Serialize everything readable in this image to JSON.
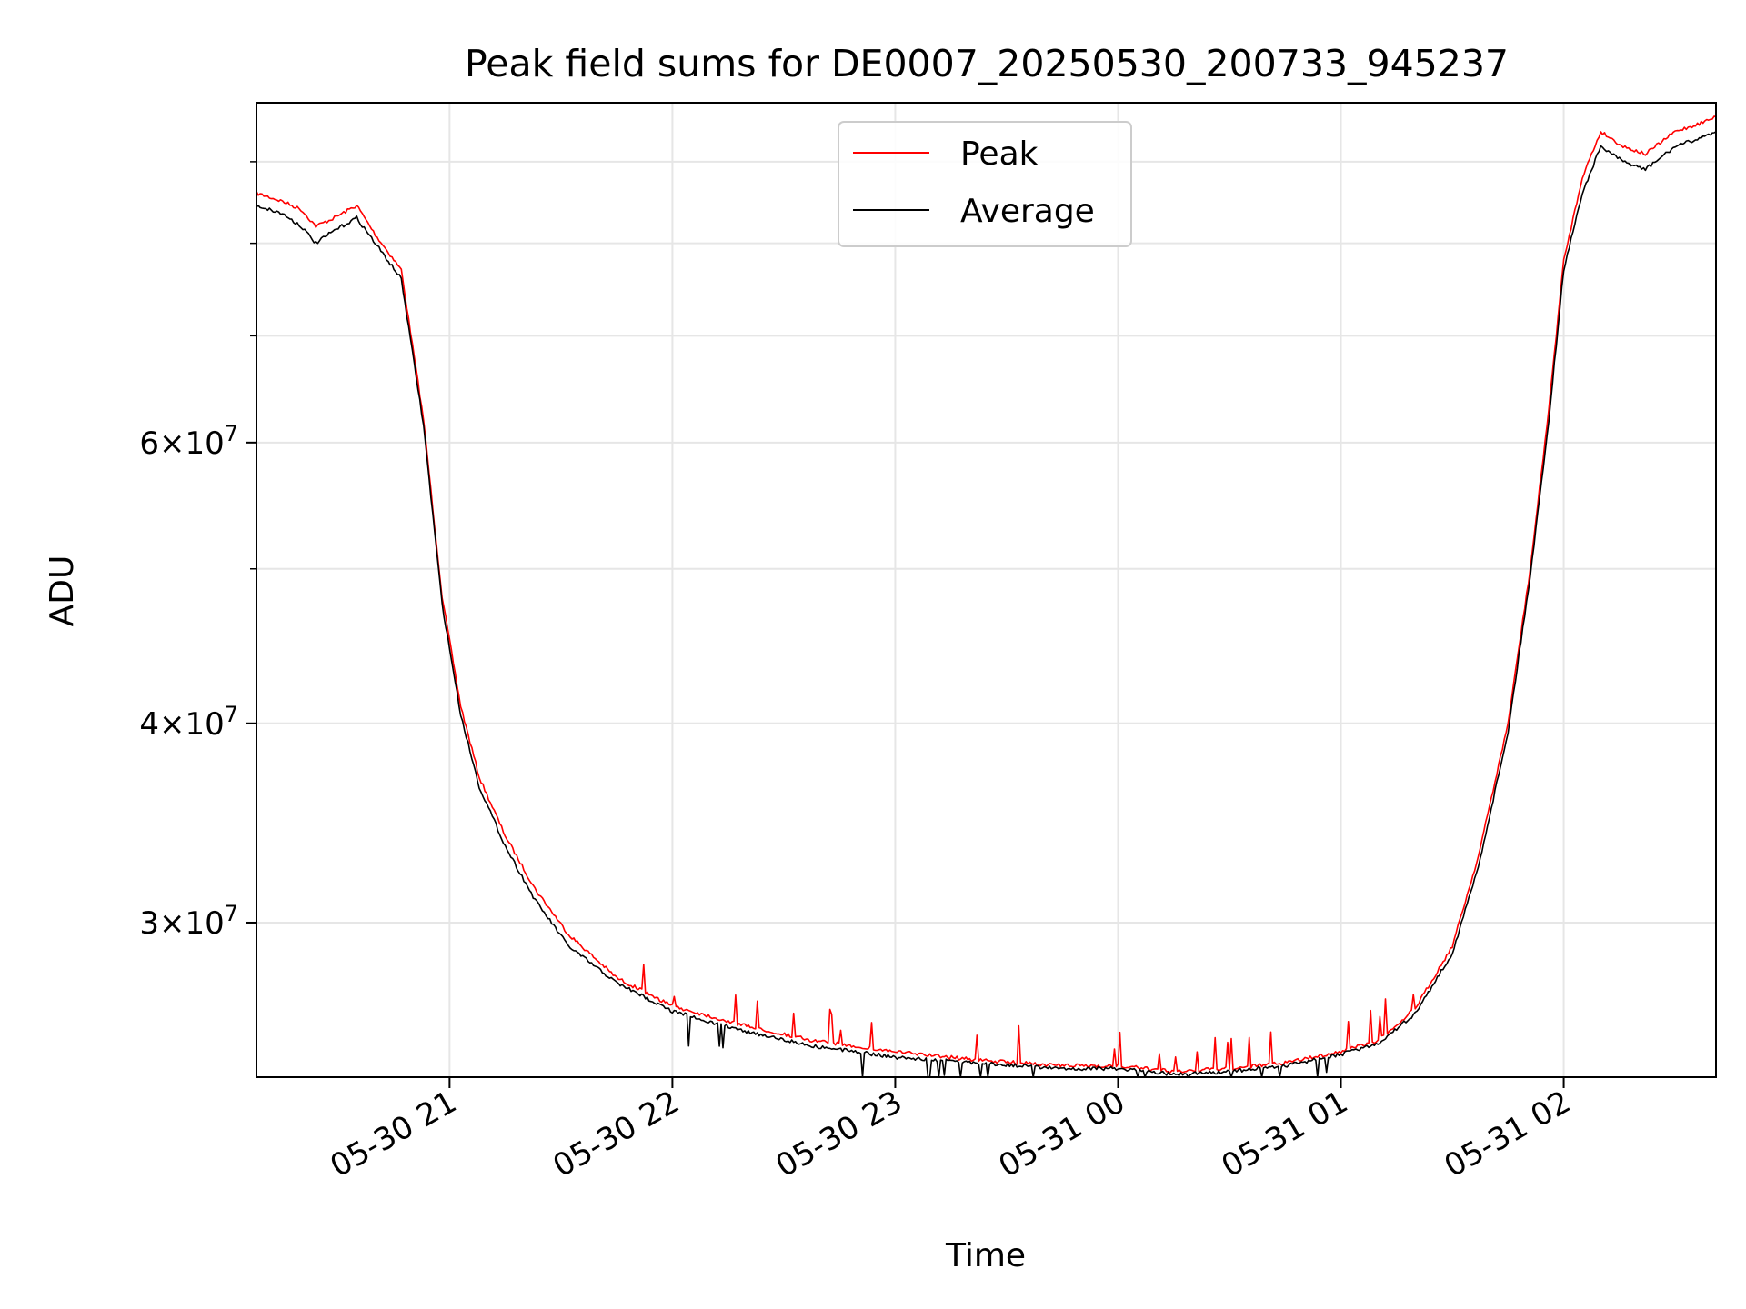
{
  "chart_data": {
    "type": "line",
    "title": "Peak field sums for DE0007_20250530_200733_945237",
    "xlabel": "Time",
    "ylabel": "ADU",
    "x_unit": "date-hour",
    "xlim": [
      "05-30 20:08",
      "05-31 02:41"
    ],
    "ylim": [
      24000000,
      98000000
    ],
    "y_scale": "log",
    "grid": true,
    "legend_position": "top-center",
    "x_ticks": [
      "05-30 21",
      "05-30 22",
      "05-30 23",
      "05-31 00",
      "05-31 01",
      "05-31 02"
    ],
    "y_ticks": [
      {
        "value": 60000000,
        "mantissa": "6",
        "base": "10",
        "exp": "7"
      },
      {
        "value": 40000000,
        "mantissa": "4",
        "base": "10",
        "exp": "7"
      },
      {
        "value": 30000000,
        "mantissa": "3",
        "base": "10",
        "exp": "7"
      }
    ],
    "y_minor_ticks": [
      50000000,
      70000000,
      80000000,
      90000000
    ],
    "series": [
      {
        "name": "Peak",
        "color": "#ff0000",
        "x": [
          "05-30 20:08",
          "05-30 20:15",
          "05-30 20:20",
          "05-30 20:24",
          "05-30 20:29",
          "05-30 20:35",
          "05-30 20:40",
          "05-30 20:47",
          "05-30 20:53",
          "05-30 20:58",
          "05-30 21:03",
          "05-30 21:08",
          "05-30 21:15",
          "05-30 21:23",
          "05-30 21:32",
          "05-30 21:45",
          "05-30 22:00",
          "05-30 22:18",
          "05-30 22:38",
          "05-30 23:00",
          "05-30 23:22",
          "05-30 23:45",
          "05-31 00:00",
          "05-31 00:15",
          "05-31 00:30",
          "05-31 00:45",
          "05-31 01:00",
          "05-31 01:10",
          "05-31 01:20",
          "05-31 01:30",
          "05-31 01:37",
          "05-31 01:45",
          "05-31 01:51",
          "05-31 01:56",
          "05-31 02:00",
          "05-31 02:05",
          "05-31 02:10",
          "05-31 02:16",
          "05-31 02:22",
          "05-31 02:30",
          "05-31 02:36",
          "05-31 02:41"
        ],
        "y": [
          86000000,
          85000000,
          84000000,
          82000000,
          83000000,
          84500000,
          81000000,
          77000000,
          62000000,
          48000000,
          41000000,
          37000000,
          34000000,
          31500000,
          29500000,
          27700000,
          26600000,
          25900000,
          25300000,
          24900000,
          24600000,
          24400000,
          24400000,
          24200000,
          24300000,
          24500000,
          24900000,
          25300000,
          26500000,
          29000000,
          33000000,
          40000000,
          50000000,
          63000000,
          78000000,
          88000000,
          94000000,
          92000000,
          91000000,
          94000000,
          95000000,
          96000000
        ]
      },
      {
        "name": "Average",
        "color": "#000000",
        "x": [
          "05-30 20:08",
          "05-30 20:15",
          "05-30 20:20",
          "05-30 20:24",
          "05-30 20:29",
          "05-30 20:35",
          "05-30 20:40",
          "05-30 20:47",
          "05-30 20:53",
          "05-30 20:58",
          "05-30 21:03",
          "05-30 21:08",
          "05-30 21:15",
          "05-30 21:23",
          "05-30 21:32",
          "05-30 21:45",
          "05-30 22:00",
          "05-30 22:18",
          "05-30 22:38",
          "05-30 23:00",
          "05-30 23:22",
          "05-30 23:45",
          "05-31 00:00",
          "05-31 00:15",
          "05-31 00:30",
          "05-31 00:45",
          "05-31 01:00",
          "05-31 01:10",
          "05-31 01:20",
          "05-31 01:30",
          "05-31 01:37",
          "05-31 01:45",
          "05-31 01:51",
          "05-31 01:56",
          "05-31 02:00",
          "05-31 02:05",
          "05-31 02:10",
          "05-31 02:16",
          "05-31 02:22",
          "05-31 02:30",
          "05-31 02:36",
          "05-31 02:41"
        ],
        "y": [
          84500000,
          83500000,
          82000000,
          80000000,
          81500000,
          83000000,
          80000000,
          76000000,
          61500000,
          47500000,
          40500000,
          36500000,
          33500000,
          31000000,
          29000000,
          27500000,
          26400000,
          25700000,
          25100000,
          24700000,
          24500000,
          24300000,
          24300000,
          24100000,
          24200000,
          24400000,
          24800000,
          25200000,
          26300000,
          28700000,
          32500000,
          39500000,
          49500000,
          62000000,
          77000000,
          86000000,
          92000000,
          90000000,
          89000000,
          92000000,
          93000000,
          94000000
        ]
      }
    ]
  }
}
